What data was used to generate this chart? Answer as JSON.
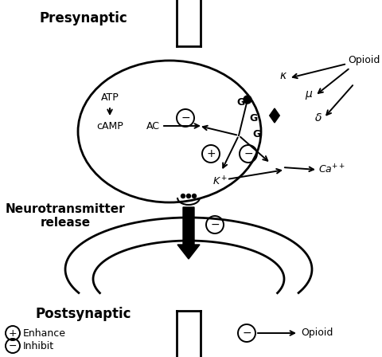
{
  "bg_color": "#ffffff",
  "presynaptic_label": "Presynaptic",
  "postsynaptic_label": "Postsynaptic",
  "neurotransmitter_label": "Neurotransmitter\nrelease",
  "enhance_label": "Enhance",
  "inhibit_label": "Inhibit",
  "opioid_label": "Opioid",
  "atp_label": "ATP",
  "camp_label": "cAMP",
  "ac_label": "AC",
  "figsize": [
    4.8,
    4.48
  ],
  "dpi": 100
}
